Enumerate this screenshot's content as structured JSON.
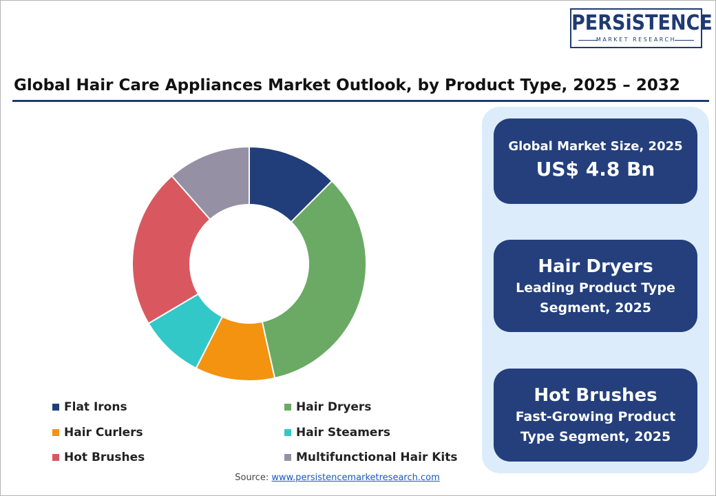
{
  "brand": {
    "logo_main": "PERSiSTENCE",
    "logo_sub": "MARKET RESEARCH"
  },
  "title": "Global Hair Care Appliances Market Outlook, by Product Type, 2025 – 2032",
  "chart_data": {
    "type": "pie",
    "title": "Global Hair Care Appliances Market Outlook, by Product Type, 2025 – 2032",
    "donut": true,
    "categories": [
      "Flat Irons",
      "Hair Dryers",
      "Hair Curlers",
      "Hair Steamers",
      "Hot Brushes",
      "Multifunctional Hair Kits"
    ],
    "values": [
      12.5,
      34.0,
      11.0,
      9.0,
      22.0,
      11.5
    ],
    "colors": [
      "#213e7a",
      "#6aaa64",
      "#f3930f",
      "#33c8c8",
      "#d9585f",
      "#9690a5"
    ],
    "legend_position": "bottom"
  },
  "cards": {
    "size_label": "Global Market Size, 2025",
    "size_value": "US$ 4.8 Bn",
    "leading_head": "Hair Dryers",
    "leading_line1": "Leading Product Type",
    "leading_line2": "Segment, 2025",
    "fast_head": "Hot Brushes",
    "fast_line1": "Fast-Growing Product",
    "fast_line2": "Type Segment, 2025"
  },
  "source": {
    "label": "Source:",
    "link": "www.persistencemarketresearch.com"
  }
}
